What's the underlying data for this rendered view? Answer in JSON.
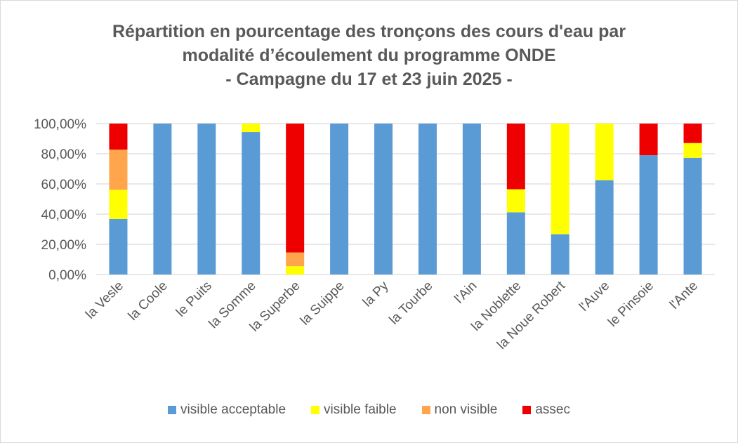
{
  "chart_data": {
    "type": "bar",
    "stacked": true,
    "title_lines": [
      "Répartition en pourcentage des tronçons des cours d'eau par",
      "modalité d’écoulement du programme ONDE",
      "- Campagne du 17 et 23 juin 2025 -"
    ],
    "xlabel": "",
    "ylabel": "",
    "ylim": [
      0,
      100
    ],
    "yticks": [
      "0,00%",
      "20,00%",
      "40,00%",
      "60,00%",
      "80,00%",
      "100,00%"
    ],
    "grid": true,
    "legend_position": "bottom",
    "categories": [
      "la Vesle",
      "la Coole",
      "le Puits",
      "la Somme",
      "la Superbe",
      "la Suippe",
      "la Py",
      "la Tourbe",
      "l'Ain",
      "la Noblette",
      "la Noue Robert",
      "l'Auve",
      "le Pinsoie",
      "l'Ante"
    ],
    "series": [
      {
        "name": "visible acceptable",
        "color": "#5B9BD5",
        "values": [
          36.8,
          100,
          100,
          94.4,
          0,
          100,
          100,
          100,
          100,
          41.2,
          26.7,
          62.5,
          79.0,
          77.3
        ]
      },
      {
        "name": "visible faible",
        "color": "#FFFF00",
        "values": [
          19.3,
          0,
          0,
          5.6,
          5.5,
          0,
          0,
          0,
          0,
          15.3,
          73.3,
          37.5,
          0,
          9.8
        ]
      },
      {
        "name": "non visible",
        "color": "#FFA64D",
        "values": [
          26.6,
          0,
          0,
          0,
          9.1,
          0,
          0,
          0,
          0,
          0,
          0,
          0,
          0,
          0
        ]
      },
      {
        "name": "assec",
        "color": "#EE0000",
        "values": [
          17.3,
          0,
          0,
          0,
          85.4,
          0,
          0,
          0,
          0,
          43.5,
          0,
          0,
          21.0,
          12.9
        ]
      }
    ]
  }
}
